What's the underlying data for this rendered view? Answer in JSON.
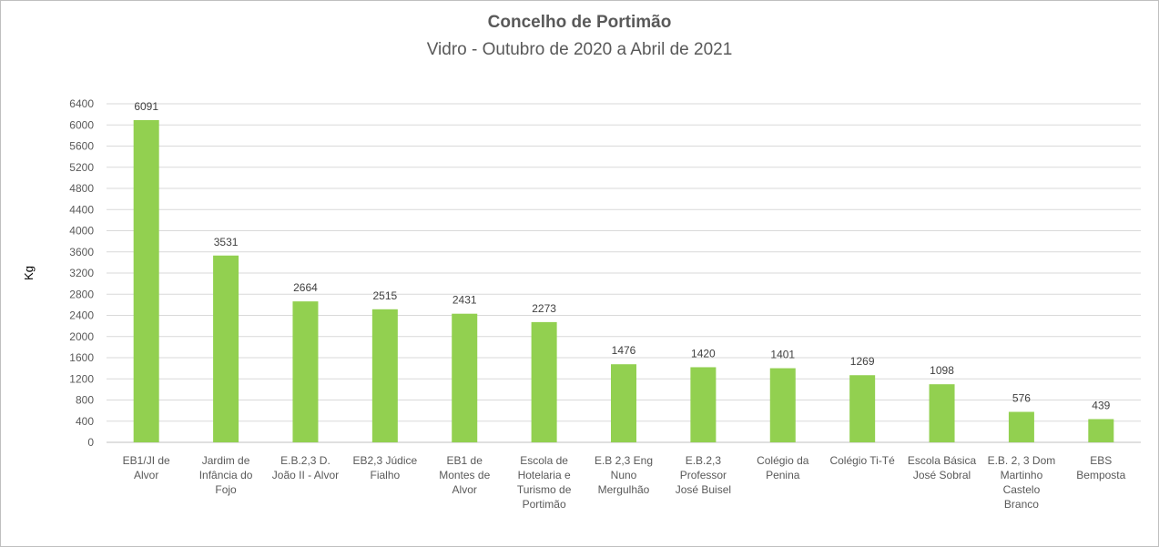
{
  "chart_data": {
    "type": "bar",
    "title": "Concelho de Portimão",
    "subtitle": "Vidro - Outubro de 2020 a Abril de 2021",
    "xlabel": "",
    "ylabel": "Kg",
    "ylim": [
      0,
      6400
    ],
    "yticks": [
      0,
      400,
      800,
      1200,
      1600,
      2000,
      2400,
      2800,
      3200,
      3600,
      4000,
      4400,
      4800,
      5200,
      5600,
      6000,
      6400
    ],
    "grid": true,
    "bar_color": "#92d050",
    "categories": [
      [
        "EB1/JI de",
        "Alvor"
      ],
      [
        "Jardim de",
        "Infância do",
        "Fojo"
      ],
      [
        "E.B.2,3 D.",
        "João II - Alvor"
      ],
      [
        "EB2,3 Júdice",
        "Fialho"
      ],
      [
        "EB1 de",
        "Montes de",
        "Alvor"
      ],
      [
        "Escola de",
        "Hotelaria e",
        "Turismo de",
        "Portimão"
      ],
      [
        "E.B 2,3 Eng",
        "Nuno",
        "Mergulhão"
      ],
      [
        "E.B.2,3",
        "Professor",
        "José Buisel"
      ],
      [
        "Colégio da",
        "Penina"
      ],
      [
        "Colégio Ti-Té"
      ],
      [
        "Escola Básica",
        "José Sobral"
      ],
      [
        "E.B. 2, 3 Dom",
        "Martinho",
        "Castelo",
        "Branco"
      ],
      [
        "EBS",
        "Bemposta"
      ]
    ],
    "values": [
      6091,
      3531,
      2664,
      2515,
      2431,
      2273,
      1476,
      1420,
      1401,
      1269,
      1098,
      576,
      439
    ]
  }
}
